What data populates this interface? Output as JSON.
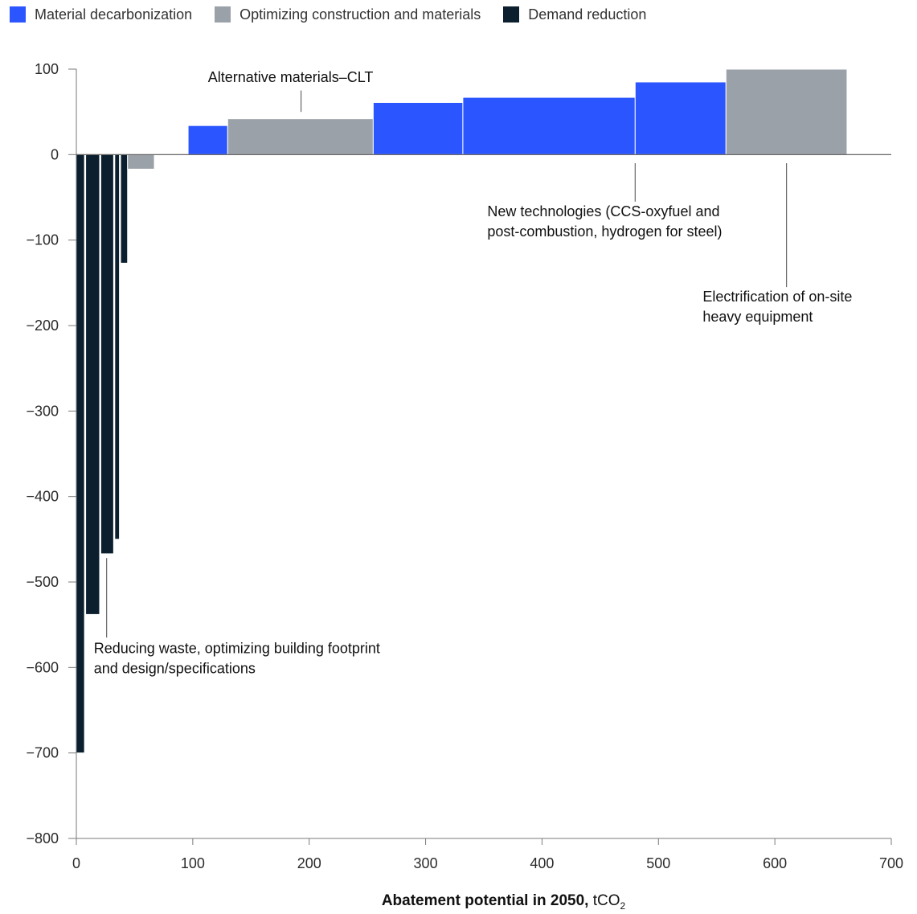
{
  "colors": {
    "material_decarbonization": "#2a55ff",
    "optimizing": "#9ba1a8",
    "demand_reduction": "#0b1f2e",
    "axis": "#7a7a7a",
    "leader": "#666666"
  },
  "chart_data": {
    "type": "bar",
    "variant": "marginal-abatement-cost-curve",
    "title": "",
    "xlabel_bold": "Abatement potential in 2050,",
    "xlabel_unit": "tCO",
    "xlabel_unit_sub": "2",
    "ylabel": "",
    "xlim": [
      0,
      700
    ],
    "ylim": [
      -800,
      100
    ],
    "x_ticks": [
      0,
      100,
      200,
      300,
      400,
      500,
      600,
      700
    ],
    "x_tick_labels": [
      "0",
      "100",
      "200",
      "300",
      "400",
      "500",
      "600",
      "700"
    ],
    "y_ticks": [
      100,
      0,
      -100,
      -200,
      -300,
      -400,
      -500,
      -600,
      -700,
      -800
    ],
    "y_tick_labels": [
      "100",
      "0",
      "−100",
      "−200",
      "−300",
      "−400",
      "−500",
      "−600",
      "−700",
      "−800"
    ],
    "grid": false,
    "legend_position": "top-left",
    "legend": [
      {
        "key": "material_decarbonization",
        "label": "Material decarbonization"
      },
      {
        "key": "optimizing",
        "label": "Optimizing construction and materials"
      },
      {
        "key": "demand_reduction",
        "label": "Demand reduction"
      }
    ],
    "bars": [
      {
        "x_start": 0,
        "x_end": 7,
        "value": -700,
        "category": "demand_reduction"
      },
      {
        "x_start": 8,
        "x_end": 20,
        "value": -538,
        "category": "demand_reduction"
      },
      {
        "x_start": 21,
        "x_end": 32,
        "value": -467,
        "category": "demand_reduction"
      },
      {
        "x_start": 33,
        "x_end": 37,
        "value": -450,
        "category": "demand_reduction"
      },
      {
        "x_start": 38,
        "x_end": 44,
        "value": -127,
        "category": "demand_reduction"
      },
      {
        "x_start": 44,
        "x_end": 67,
        "value": -17,
        "category": "optimizing"
      },
      {
        "x_start": 96,
        "x_end": 130,
        "value": 34,
        "category": "material_decarbonization"
      },
      {
        "x_start": 130,
        "x_end": 255,
        "value": 42,
        "category": "optimizing"
      },
      {
        "x_start": 255,
        "x_end": 332,
        "value": 61,
        "category": "material_decarbonization"
      },
      {
        "x_start": 332,
        "x_end": 480,
        "value": 67,
        "category": "material_decarbonization"
      },
      {
        "x_start": 480,
        "x_end": 558,
        "value": 85,
        "category": "material_decarbonization"
      },
      {
        "x_start": 558,
        "x_end": 662,
        "value": 100,
        "category": "optimizing"
      }
    ],
    "annotations": [
      {
        "lines": [
          "Alternative materials–CLT"
        ],
        "anchor_x": 193,
        "anchor_y": 50,
        "line_end_y": 75,
        "text_x": 113,
        "text_y": 85
      },
      {
        "lines": [
          "New technologies (CCS-oxyfuel and",
          "post-combustion, hydrogen for steel)"
        ],
        "anchor_x": 480,
        "anchor_y": -10,
        "line_end_y": -55,
        "text_x": 353,
        "text_y": -72
      },
      {
        "lines": [
          "Electrification of on-site",
          "heavy equipment"
        ],
        "anchor_x": 610,
        "anchor_y": -10,
        "line_end_y": -155,
        "text_x": 538,
        "text_y": -172
      },
      {
        "lines": [
          "Reducing waste, optimizing building footprint",
          "and design/specifications"
        ],
        "anchor_x": 26,
        "anchor_y": -472,
        "line_end_y": -565,
        "text_x": 15,
        "text_y": -583
      }
    ]
  }
}
